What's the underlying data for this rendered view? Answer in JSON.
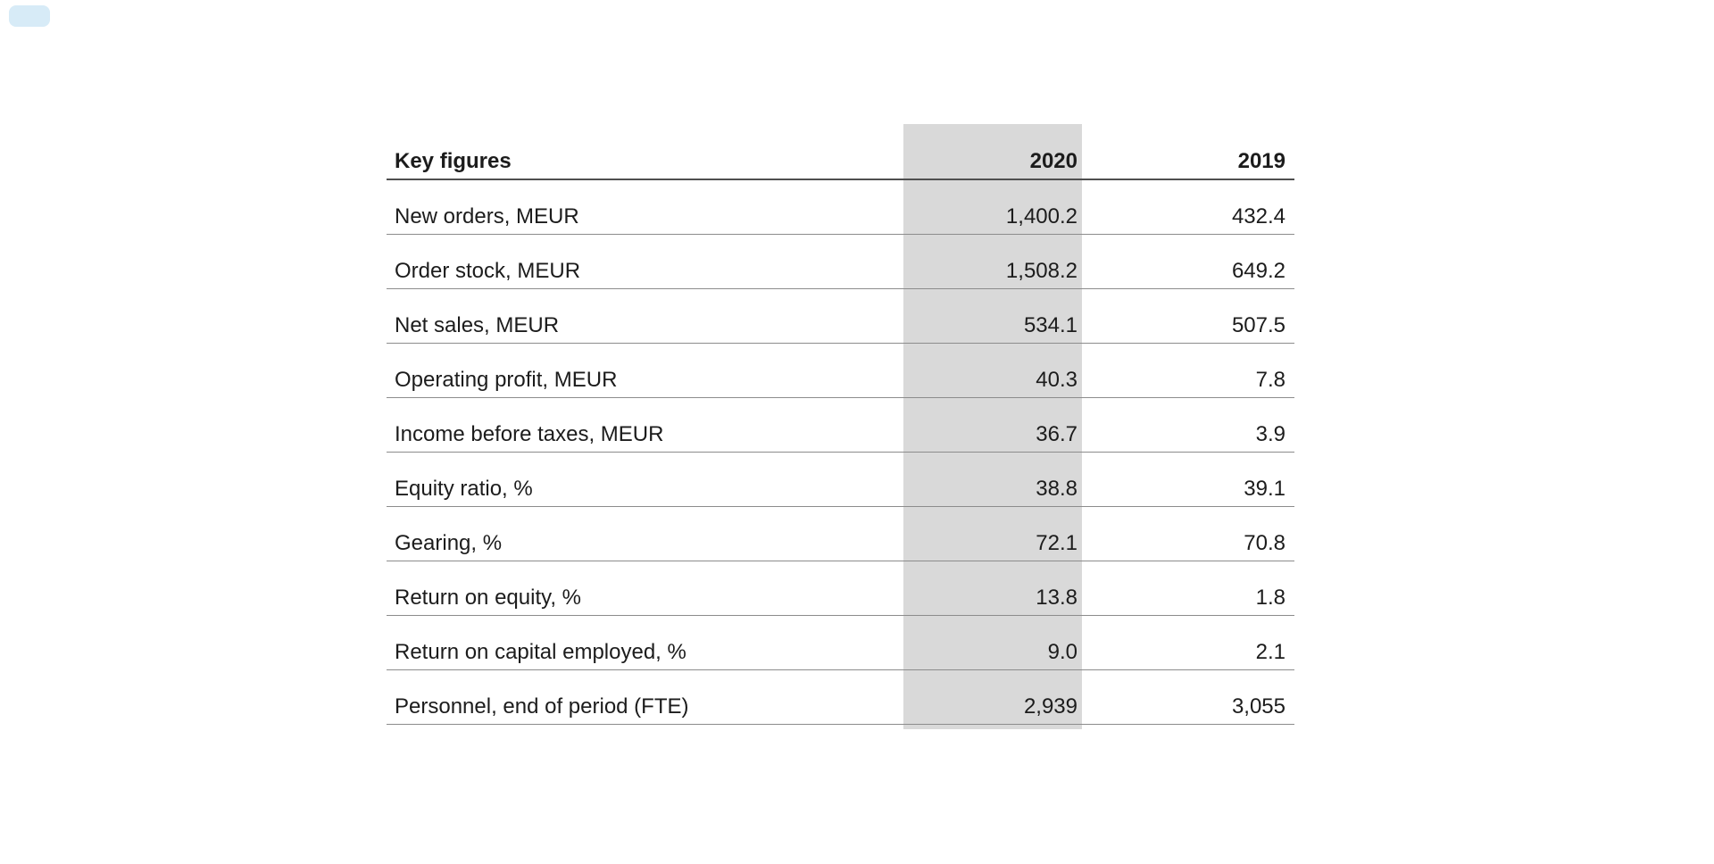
{
  "page": {
    "background": "#ffffff",
    "decor_blob_color": "#96cbe9"
  },
  "table": {
    "header": {
      "label": "Key figures",
      "col_2020": "2020",
      "col_2019": "2019"
    },
    "highlight_color": "#d9d9d9",
    "rows": [
      {
        "label": "New orders, MEUR",
        "v2020": "1,400.2",
        "v2019": "432.4"
      },
      {
        "label": "Order stock, MEUR",
        "v2020": "1,508.2",
        "v2019": "649.2"
      },
      {
        "label": "Net sales, MEUR",
        "v2020": "534.1",
        "v2019": "507.5"
      },
      {
        "label": "Operating profit, MEUR",
        "v2020": "40.3",
        "v2019": "7.8"
      },
      {
        "label": "Income before taxes, MEUR",
        "v2020": "36.7",
        "v2019": "3.9"
      },
      {
        "label": "Equity ratio, %",
        "v2020": "38.8",
        "v2019": "39.1"
      },
      {
        "label": "Gearing, %",
        "v2020": "72.1",
        "v2019": "70.8"
      },
      {
        "label": "Return on equity, %",
        "v2020": "13.8",
        "v2019": "1.8"
      },
      {
        "label": "Return on capital employed, %",
        "v2020": "9.0",
        "v2019": "2.1"
      },
      {
        "label": "Personnel, end of period (FTE)",
        "v2020": "2,939",
        "v2019": "3,055"
      }
    ]
  },
  "chart_data": {
    "type": "table",
    "title": "Key figures",
    "columns": [
      "Key figures",
      "2020",
      "2019"
    ],
    "categories": [
      "New orders, MEUR",
      "Order stock, MEUR",
      "Net sales, MEUR",
      "Operating profit, MEUR",
      "Income before taxes, MEUR",
      "Equity ratio, %",
      "Gearing, %",
      "Return on equity, %",
      "Return on capital employed, %",
      "Personnel, end of period (FTE)"
    ],
    "series": [
      {
        "name": "2020",
        "values": [
          1400.2,
          1508.2,
          534.1,
          40.3,
          36.7,
          38.8,
          72.1,
          13.8,
          9.0,
          2939
        ]
      },
      {
        "name": "2019",
        "values": [
          432.4,
          649.2,
          507.5,
          7.8,
          3.9,
          39.1,
          70.8,
          1.8,
          2.1,
          3055
        ]
      }
    ],
    "layout_hints": {
      "highlighted_column": "2020",
      "grid": "horizontal-rules",
      "numbers_aligned": "right"
    }
  }
}
